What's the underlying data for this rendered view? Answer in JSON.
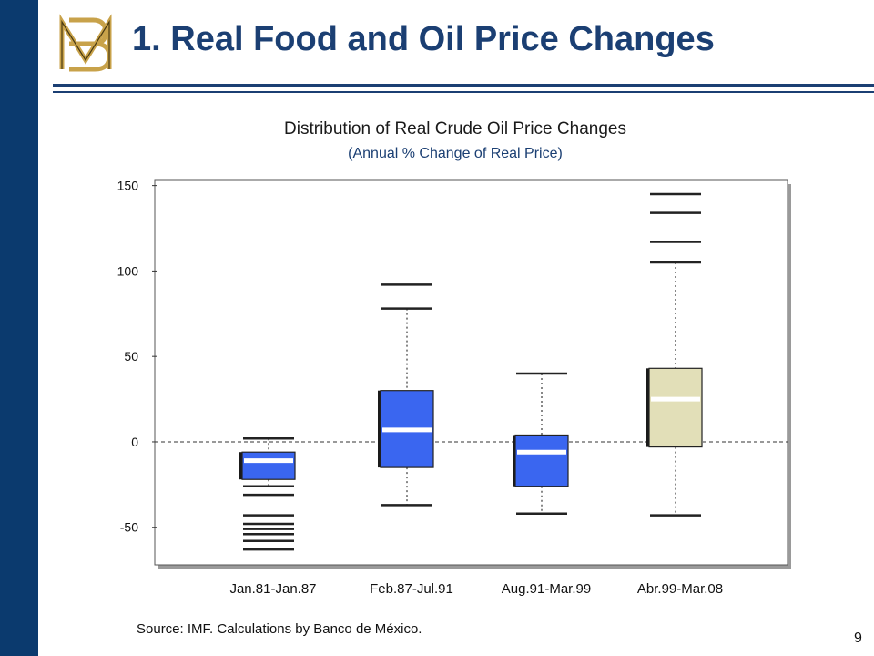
{
  "title": "1. Real Food and Oil Price Changes",
  "logo_text": "BM",
  "source": "Source: IMF. Calculations by Banco de México.",
  "page_number": "9",
  "colors": {
    "sidebar": "#0b3a6e",
    "title": "#1b3f73",
    "box_blue": "#3a66f0",
    "box_beige": "#e2dfb8",
    "logo_gold": "#c8a24a"
  },
  "chart_data": {
    "type": "boxplot",
    "title": "Distribution of Real Crude Oil Price Changes",
    "subtitle": "(Annual % Change of Real Price)",
    "ylim": [
      -72,
      153
    ],
    "yticks": [
      -50,
      0,
      50,
      100,
      150
    ],
    "reference_line": 0,
    "categories": [
      "Jan.81-Jan.87",
      "Feb.87-Jul.91",
      "Aug.91-Mar.99",
      "Abr.99-Mar.08"
    ],
    "boxes": [
      {
        "label": "Jan.81-Jan.87",
        "whisker_low": -26,
        "q1": -22,
        "median": -11,
        "q3": -6,
        "whisker_high": 2,
        "outliers": [
          -31,
          -43,
          -48,
          -51,
          -54,
          -58,
          -63
        ],
        "color": "#3a66f0"
      },
      {
        "label": "Feb.87-Jul.91",
        "whisker_low": -37,
        "q1": -15,
        "median": 7,
        "q3": 30,
        "whisker_high": 78,
        "outliers": [
          92
        ],
        "color": "#3a66f0"
      },
      {
        "label": "Aug.91-Mar.99",
        "whisker_low": -42,
        "q1": -26,
        "median": -6,
        "q3": 4,
        "whisker_high": 40,
        "outliers": [],
        "color": "#3a66f0"
      },
      {
        "label": "Abr.99-Mar.08",
        "whisker_low": -43,
        "q1": -3,
        "median": 25,
        "q3": 43,
        "whisker_high": 105,
        "outliers": [
          117,
          134,
          145
        ],
        "color": "#e2dfb8"
      }
    ]
  }
}
